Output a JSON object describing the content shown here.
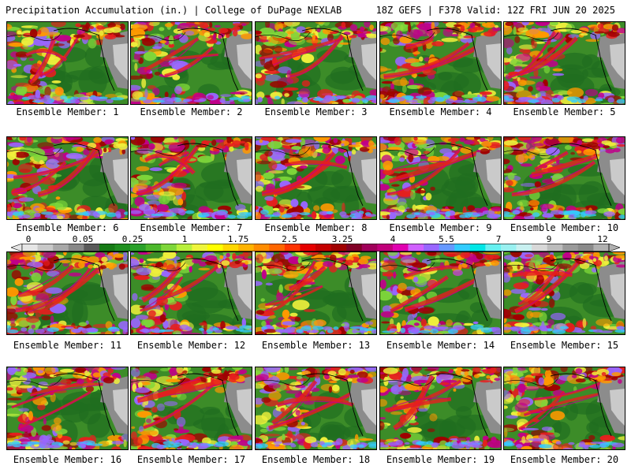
{
  "title": {
    "left": "Precipitation Accumulation (in.) | College of DuPage NEXLAB",
    "right": "18Z GEFS | F378 Valid: 12Z FRI JUN 20 2025"
  },
  "panel_label_prefix": "Ensemble Member: ",
  "members": [
    1,
    2,
    3,
    4,
    5,
    6,
    7,
    8,
    9,
    10,
    11,
    12,
    13,
    14,
    15,
    16,
    17,
    18,
    19,
    20
  ],
  "colorbar": {
    "labels": [
      "0",
      "0.05",
      "0.25",
      "1",
      "1.75",
      "2.5",
      "3.25",
      "4",
      "5.5",
      "7",
      "9",
      "12"
    ],
    "colors": [
      "#e6e6e6",
      "#c8c8c8",
      "#a8a8a8",
      "#888888",
      "#5a5a5a",
      "#157a15",
      "#1f8f1f",
      "#2aa02a",
      "#4cb82c",
      "#7ed63a",
      "#b8ef3c",
      "#eef53c",
      "#ffff00",
      "#ffd700",
      "#ffb300",
      "#ff8c00",
      "#ff6600",
      "#ff3300",
      "#e60000",
      "#c40000",
      "#a00000",
      "#800026",
      "#a0005a",
      "#c0007a",
      "#e000b0",
      "#d060ff",
      "#9966ff",
      "#6699ff",
      "#33ccff",
      "#00e6e6",
      "#66f0f0",
      "#99f0f0",
      "#c8f0f0",
      "#d8d8d8",
      "#bcbcbc",
      "#9a9a9a",
      "#8a8a8a",
      "#b0b0b0"
    ]
  },
  "map_colors": {
    "ocean_dry": "#3c8c28",
    "ocean_dark": "#1f6e1f",
    "land_gray": "#8c8c8c",
    "land_light": "#d9d9d9",
    "lightgreen": "#7ed63a",
    "yellow": "#f0f03c",
    "orange": "#ff9900",
    "red": "#e61e1e",
    "darkred": "#a00000",
    "magenta": "#c0008a",
    "purple": "#9966ff",
    "cyan": "#33ccff",
    "coast": "#000000"
  }
}
